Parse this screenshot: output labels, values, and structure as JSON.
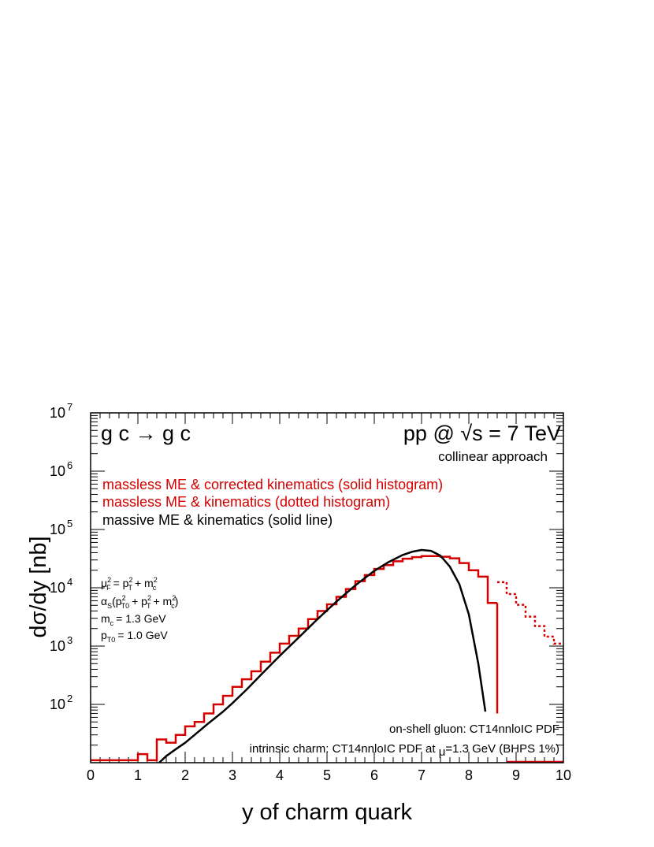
{
  "chart_data": {
    "type": "line",
    "title": "g c → g c",
    "energy_label": "pp @ √s = 7 TeV",
    "approach_label": "collinear approach",
    "xlabel": "y of charm quark",
    "ylabel": "dσ/dy   [nb]",
    "xlim": [
      0,
      10
    ],
    "ylim": [
      10,
      10000000
    ],
    "yscale": "log",
    "x_ticks": [
      "0",
      "1",
      "2",
      "3",
      "4",
      "5",
      "6",
      "7",
      "8",
      "9",
      "10"
    ],
    "y_ticks": [
      {
        "value": 100,
        "base": "10",
        "exp": "2"
      },
      {
        "value": 1000,
        "base": "10",
        "exp": "3"
      },
      {
        "value": 10000,
        "base": "10",
        "exp": "4"
      },
      {
        "value": 100000,
        "base": "10",
        "exp": "5"
      },
      {
        "value": 1000000,
        "base": "10",
        "exp": "6"
      },
      {
        "value": 10000000,
        "base": "10",
        "exp": "7"
      }
    ],
    "colors": {
      "red": "#d40000",
      "black": "#000000"
    },
    "legend": [
      {
        "text": "massless ME & corrected kinematics (solid histogram)",
        "color": "#d40000"
      },
      {
        "text": "massless ME & kinematics (dotted histogram)",
        "color": "#d40000"
      },
      {
        "text": "massive ME & kinematics (solid line)",
        "color": "#000000"
      }
    ],
    "params": {
      "mu_F": "μ",
      "mu_F_sub": "F",
      "mu_F_sup": "2",
      "mu_F_rhs": "= p",
      "mu_F_rhs_sub": "T",
      "mu_F_rhs_sup": "2",
      "mu_F_plus": "+ m",
      "mu_F_plus_sub": "c",
      "mu_F_plus_sup": "2",
      "alpha_s": "α",
      "alpha_s_sub": "S",
      "alpha_s_arg_open": "(p",
      "alpha_s_arg_sub": "T0",
      "alpha_s_arg_sup": "2",
      "alpha_s_plus1": "+ p",
      "alpha_s_plus1_sub": "T",
      "alpha_s_plus1_sup": "2",
      "alpha_s_plus2": "+ m",
      "alpha_s_plus2_sub": "c",
      "alpha_s_plus2_sup": "2",
      "alpha_s_close": ")",
      "mc_label": "m",
      "mc_sub": "c",
      "mc_value": "= 1.3 GeV",
      "pt0_label": "p",
      "pt0_sub": "T0",
      "pt0_value": "= 1.0 GeV"
    },
    "note_gluon": "on-shell gluon: CT14nnloIC PDF",
    "note_charm_pre": "intrinsic charm: CT14nnloIC PDF at ",
    "note_charm_mu": "μ",
    "note_charm_post": "=1.3 GeV (BHPS 1%)",
    "series": [
      {
        "name": "massless ME & corrected kinematics (solid histogram)",
        "style": "step-solid",
        "color": "#d40000",
        "bin_width": 0.2,
        "x_start": 0.0,
        "values": [
          11,
          11,
          11,
          11,
          11,
          14,
          11,
          25,
          22,
          30,
          42,
          50,
          70,
          100,
          140,
          200,
          270,
          370,
          540,
          770,
          1100,
          1500,
          2000,
          2900,
          4000,
          5200,
          7000,
          9500,
          13000,
          16500,
          21000,
          24500,
          28500,
          31500,
          33500,
          35000,
          35000,
          34000,
          32000,
          26500,
          20000,
          15500,
          5500
        ]
      },
      {
        "name": "massless ME & kinematics (dotted histogram)",
        "style": "step-dotted",
        "color": "#d40000",
        "bin_width": 0.2,
        "x_start": 8.6,
        "values": [
          12500,
          7800,
          5100,
          3200,
          2200,
          1450,
          1100
        ]
      },
      {
        "name": "massive ME & kinematics (solid line)",
        "style": "line",
        "color": "#000000",
        "x": [
          1.45,
          1.6,
          1.8,
          2.0,
          2.2,
          2.5,
          2.8,
          3.0,
          3.3,
          3.6,
          4.0,
          4.4,
          4.8,
          5.2,
          5.6,
          6.0,
          6.3,
          6.6,
          6.8,
          7.0,
          7.2,
          7.4,
          7.6,
          7.8,
          8.0,
          8.2,
          8.35
        ],
        "y": [
          10,
          13,
          17,
          22,
          30,
          48,
          75,
          105,
          180,
          320,
          680,
          1400,
          2900,
          5800,
          11000,
          19500,
          27500,
          36500,
          41500,
          44500,
          43000,
          35500,
          23000,
          11500,
          3500,
          500,
          75
        ]
      }
    ]
  }
}
